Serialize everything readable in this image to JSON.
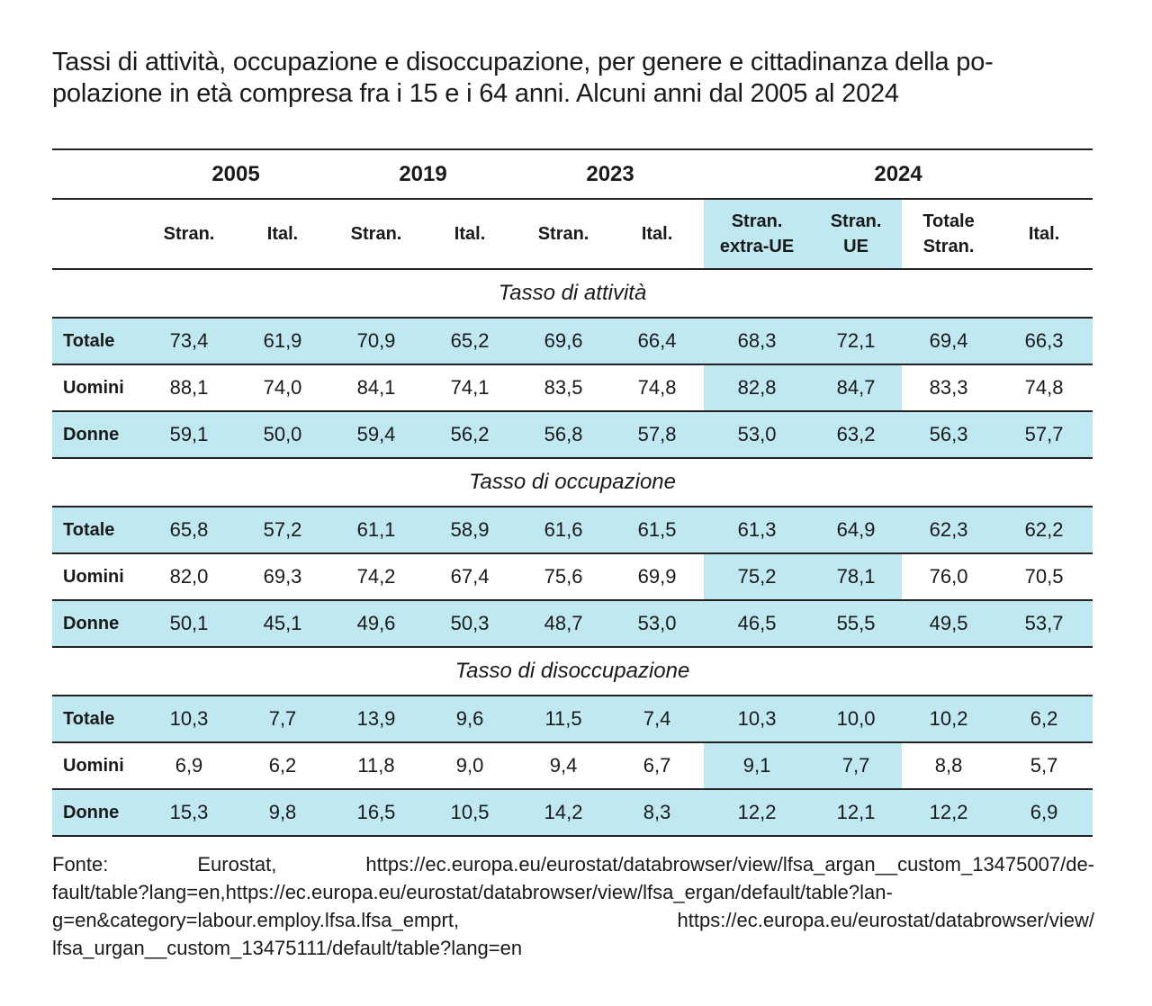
{
  "title": {
    "line1": "Tassi di attività, occupazione e disoccupazione, per genere e cittadinanza della po-",
    "line2": "polazione in età compresa fra i 15 e i 64 anni. Alcuni anni dal 2005 al 2024"
  },
  "header": {
    "years": [
      "2005",
      "2019",
      "2023",
      "2024"
    ],
    "subs": [
      "Stran.",
      "Ital.",
      "Stran.",
      "Ital.",
      "Stran.",
      "Ital.",
      "Stran.\nextra-UE",
      "Stran.\nUE",
      "Totale\nStran.",
      "Ital."
    ]
  },
  "sections": [
    {
      "title": "Tasso di attività",
      "rows": [
        {
          "label": "Totale",
          "values": [
            "73,4",
            "61,9",
            "70,9",
            "65,2",
            "69,6",
            "66,4",
            "68,3",
            "72,1",
            "69,4",
            "66,3"
          ]
        },
        {
          "label": "Uomini",
          "values": [
            "88,1",
            "74,0",
            "84,1",
            "74,1",
            "83,5",
            "74,8",
            "82,8",
            "84,7",
            "83,3",
            "74,8"
          ]
        },
        {
          "label": "Donne",
          "values": [
            "59,1",
            "50,0",
            "59,4",
            "56,2",
            "56,8",
            "57,8",
            "53,0",
            "63,2",
            "56,3",
            "57,7"
          ]
        }
      ]
    },
    {
      "title": "Tasso di occupazione",
      "rows": [
        {
          "label": "Totale",
          "values": [
            "65,8",
            "57,2",
            "61,1",
            "58,9",
            "61,6",
            "61,5",
            "61,3",
            "64,9",
            "62,3",
            "62,2"
          ]
        },
        {
          "label": "Uomini",
          "values": [
            "82,0",
            "69,3",
            "74,2",
            "67,4",
            "75,6",
            "69,9",
            "75,2",
            "78,1",
            "76,0",
            "70,5"
          ]
        },
        {
          "label": "Donne",
          "values": [
            "50,1",
            "45,1",
            "49,6",
            "50,3",
            "48,7",
            "53,0",
            "46,5",
            "55,5",
            "49,5",
            "53,7"
          ]
        }
      ]
    },
    {
      "title": "Tasso di disoccupazione",
      "rows": [
        {
          "label": "Totale",
          "values": [
            "10,3",
            "7,7",
            "13,9",
            "9,6",
            "11,5",
            "7,4",
            "10,3",
            "10,0",
            "10,2",
            "6,2"
          ]
        },
        {
          "label": "Uomini",
          "values": [
            "6,9",
            "6,2",
            "11,8",
            "9,0",
            "9,4",
            "6,7",
            "9,1",
            "7,7",
            "8,8",
            "5,7"
          ]
        },
        {
          "label": "Donne",
          "values": [
            "15,3",
            "9,8",
            "16,5",
            "10,5",
            "14,2",
            "8,3",
            "12,2",
            "12,1",
            "12,2",
            "6,9"
          ]
        }
      ]
    }
  ],
  "source": {
    "line1": "Fonte: Eurostat, https://ec.europa.eu/eurostat/databrowser/view/lfsa_argan__custom_13475007/de-",
    "line2": "fault/table?lang=en,https://ec.europa.eu/eurostat/databrowser/view/lfsa_ergan/default/table?lan-",
    "line3a": "g=en&category=labour.employ.lfsa.lfsa_emprt,",
    "line3b": "https://ec.europa.eu/eurostat/databrowser/view/",
    "line4": "lfsa_urgan__custom_13475111/default/table?lang=en"
  },
  "colors": {
    "shade": "#bfe8f0",
    "rule": "#222222"
  }
}
